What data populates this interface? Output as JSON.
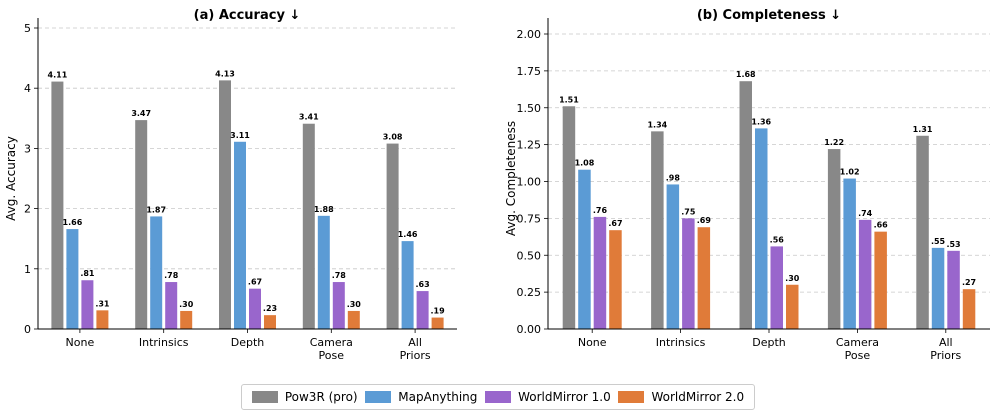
{
  "colors": {
    "pow3r": "#888888",
    "mapanything": "#5b9bd5",
    "worldmirror1": "#9966cc",
    "worldmirror2": "#e07b39"
  },
  "legend": [
    {
      "name": "Pow3R (pro)",
      "color": "#888888"
    },
    {
      "name": "MapAnything",
      "color": "#5b9bd5"
    },
    {
      "name": "WorldMirror 1.0",
      "color": "#9966cc"
    },
    {
      "name": "WorldMirror 2.0",
      "color": "#e07b39"
    }
  ],
  "chart_data": [
    {
      "type": "bar",
      "title": "(a) Accuracy ↓",
      "ylabel": "Avg. Accuracy",
      "xlabel": "",
      "ylim": [
        0,
        5
      ],
      "yticks": [
        "0",
        "1",
        "2",
        "3",
        "4",
        "5"
      ],
      "grid": true,
      "categories": [
        "None",
        "Intrinsics",
        "Depth",
        "Camera\nPose",
        "All\nPriors"
      ],
      "series": [
        {
          "name": "Pow3R (pro)",
          "values": [
            4.11,
            3.47,
            4.13,
            3.41,
            3.08
          ],
          "labels": [
            "4.11",
            "3.47",
            "4.13",
            "3.41",
            "3.08"
          ]
        },
        {
          "name": "MapAnything",
          "values": [
            1.66,
            1.87,
            3.11,
            1.88,
            1.46
          ],
          "labels": [
            "1.66",
            "1.87",
            "3.11",
            "1.88",
            "1.46"
          ]
        },
        {
          "name": "WorldMirror 1.0",
          "values": [
            0.81,
            0.78,
            0.67,
            0.78,
            0.63
          ],
          "labels": [
            ".81",
            ".78",
            ".67",
            ".78",
            ".63"
          ]
        },
        {
          "name": "WorldMirror 2.0",
          "values": [
            0.31,
            0.3,
            0.23,
            0.3,
            0.19
          ],
          "labels": [
            ".31",
            ".30",
            ".23",
            ".30",
            ".19"
          ]
        }
      ]
    },
    {
      "type": "bar",
      "title": "(b) Completeness ↓",
      "ylabel": "Avg. Completeness",
      "xlabel": "",
      "ylim": [
        0,
        2.0
      ],
      "yticks": [
        "0.00",
        "0.25",
        "0.50",
        "0.75",
        "1.00",
        "1.25",
        "1.50",
        "1.75",
        "2.00"
      ],
      "grid": true,
      "categories": [
        "None",
        "Intrinsics",
        "Depth",
        "Camera\nPose",
        "All\nPriors"
      ],
      "series": [
        {
          "name": "Pow3R (pro)",
          "values": [
            1.51,
            1.34,
            1.68,
            1.22,
            1.31
          ],
          "labels": [
            "1.51",
            "1.34",
            "1.68",
            "1.22",
            "1.31"
          ]
        },
        {
          "name": "MapAnything",
          "values": [
            1.08,
            0.98,
            1.36,
            1.02,
            0.55
          ],
          "labels": [
            "1.08",
            ".98",
            "1.36",
            "1.02",
            ".55"
          ]
        },
        {
          "name": "WorldMirror 1.0",
          "values": [
            0.76,
            0.75,
            0.56,
            0.74,
            0.53
          ],
          "labels": [
            ".76",
            ".75",
            ".56",
            ".74",
            ".53"
          ]
        },
        {
          "name": "WorldMirror 2.0",
          "values": [
            0.67,
            0.69,
            0.3,
            0.66,
            0.27
          ],
          "labels": [
            ".67",
            ".69",
            ".30",
            ".66",
            ".27"
          ]
        }
      ]
    }
  ]
}
